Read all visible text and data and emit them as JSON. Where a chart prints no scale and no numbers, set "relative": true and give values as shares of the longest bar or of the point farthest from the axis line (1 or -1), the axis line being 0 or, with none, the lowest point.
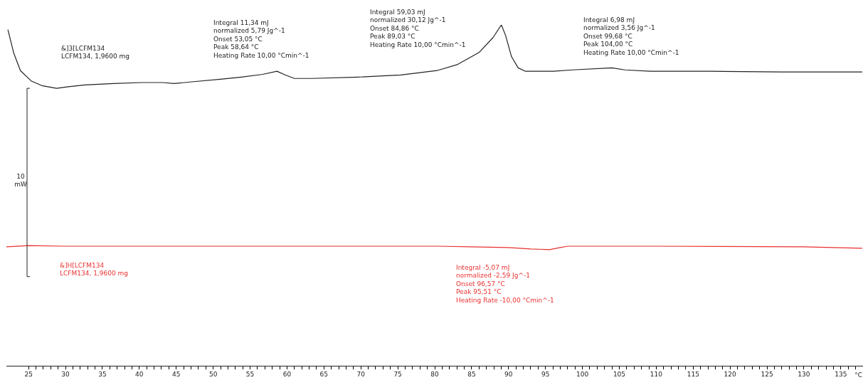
{
  "chart_data": {
    "type": "line",
    "relative": true,
    "xlabel": "°C",
    "xlim": [
      22,
      138
    ],
    "xticks": [
      25,
      {
        "value": 26,
        "label": null
      },
      {
        "value": 27,
        "label": null
      },
      {
        "value": 28,
        "label": null
      },
      {
        "value": 29,
        "label": null
      },
      30,
      {
        "value": 31,
        "label": null
      },
      {
        "value": 32,
        "label": null
      },
      {
        "value": 33,
        "label": null
      },
      {
        "value": 34,
        "label": null
      },
      35,
      {
        "value": 36,
        "label": null
      },
      {
        "value": 37,
        "label": null
      },
      {
        "value": 38,
        "label": null
      },
      {
        "value": 39,
        "label": null
      },
      40,
      {
        "value": 41,
        "label": null
      },
      {
        "value": 42,
        "label": null
      },
      {
        "value": 43,
        "label": null
      },
      {
        "value": 44,
        "label": null
      },
      45,
      {
        "value": 46,
        "label": null
      },
      {
        "value": 47,
        "label": null
      },
      {
        "value": 48,
        "label": null
      },
      {
        "value": 49,
        "label": null
      },
      50,
      {
        "value": 51,
        "label": null
      },
      {
        "value": 52,
        "label": null
      },
      {
        "value": 53,
        "label": null
      },
      {
        "value": 54,
        "label": null
      },
      55,
      {
        "value": 56,
        "label": null
      },
      {
        "value": 57,
        "label": null
      },
      {
        "value": 58,
        "label": null
      },
      {
        "value": 59,
        "label": null
      },
      60,
      {
        "value": 61,
        "label": null
      },
      {
        "value": 62,
        "label": null
      },
      {
        "value": 63,
        "label": null
      },
      {
        "value": 64,
        "label": null
      },
      65,
      {
        "value": 66,
        "label": null
      },
      {
        "value": 67,
        "label": null
      },
      {
        "value": 68,
        "label": null
      },
      {
        "value": 69,
        "label": null
      },
      70,
      {
        "value": 71,
        "label": null
      },
      {
        "value": 72,
        "label": null
      },
      {
        "value": 73,
        "label": null
      },
      {
        "value": 74,
        "label": null
      },
      75,
      {
        "value": 76,
        "label": null
      },
      {
        "value": 77,
        "label": null
      },
      {
        "value": 78,
        "label": null
      },
      {
        "value": 79,
        "label": null
      },
      80,
      {
        "value": 81,
        "label": null
      },
      {
        "value": 82,
        "label": null
      },
      {
        "value": 83,
        "label": null
      },
      {
        "value": 84,
        "label": null
      },
      85,
      {
        "value": 86,
        "label": null
      },
      {
        "value": 87,
        "label": null
      },
      {
        "value": 88,
        "label": null
      },
      {
        "value": 89,
        "label": null
      },
      90,
      {
        "value": 91,
        "label": null
      },
      {
        "value": 92,
        "label": null
      },
      {
        "value": 93,
        "label": null
      },
      {
        "value": 94,
        "label": null
      },
      95,
      {
        "value": 96,
        "label": null
      },
      {
        "value": 97,
        "label": null
      },
      {
        "value": 98,
        "label": null
      },
      {
        "value": 99,
        "label": null
      },
      100,
      {
        "value": 101,
        "label": null
      },
      {
        "value": 102,
        "label": null
      },
      {
        "value": 103,
        "label": null
      },
      {
        "value": 104,
        "label": null
      },
      105,
      {
        "value": 106,
        "label": null
      },
      {
        "value": 107,
        "label": null
      },
      {
        "value": 108,
        "label": null
      },
      {
        "value": 109,
        "label": null
      },
      110,
      {
        "value": 111,
        "label": null
      },
      {
        "value": 112,
        "label": null
      },
      {
        "value": 113,
        "label": null
      },
      {
        "value": 114,
        "label": null
      },
      115,
      {
        "value": 116,
        "label": null
      },
      {
        "value": 117,
        "label": null
      },
      {
        "value": 118,
        "label": null
      },
      {
        "value": 119,
        "label": null
      },
      120,
      {
        "value": 121,
        "label": null
      },
      {
        "value": 122,
        "label": null
      },
      {
        "value": 123,
        "label": null
      },
      {
        "value": 124,
        "label": null
      },
      125,
      {
        "value": 126,
        "label": null
      },
      {
        "value": 127,
        "label": null
      },
      {
        "value": 128,
        "label": null
      },
      {
        "value": 129,
        "label": null
      },
      130,
      {
        "value": 131,
        "label": null
      },
      {
        "value": 132,
        "label": null
      },
      {
        "value": 133,
        "label": null
      },
      {
        "value": 134,
        "label": null
      },
      135,
      {
        "value": 136,
        "label": null
      },
      {
        "value": 137,
        "label": null
      }
    ],
    "series": [
      {
        "name": "&]3[LCFM134\nLCFM134, 1,9600 mg",
        "color": "#222222",
        "x": [
          22.2,
          23.0,
          23.9,
          25.4,
          26.8,
          28.8,
          30.2,
          32.6,
          36.5,
          40.3,
          43.2,
          44.7,
          47.1,
          51.2,
          53.8,
          56.7,
          58.64,
          59.8,
          61.0,
          63.3,
          69.6,
          75.4,
          80.3,
          83.1,
          86.0,
          87.9,
          89.03,
          89.6,
          90.4,
          91.3,
          92.3,
          96.1,
          98.6,
          104.0,
          105.8,
          109.2,
          117.4,
          127.0,
          137.9
        ],
        "values": [
          0.986,
          0.917,
          0.866,
          0.835,
          0.822,
          0.814,
          0.818,
          0.824,
          0.828,
          0.831,
          0.831,
          0.828,
          0.833,
          0.841,
          0.847,
          0.855,
          0.864,
          0.853,
          0.843,
          0.843,
          0.847,
          0.853,
          0.866,
          0.884,
          0.919,
          0.963,
          1,
          0.969,
          0.907,
          0.874,
          0.864,
          0.864,
          0.868,
          0.874,
          0.868,
          0.864,
          0.864,
          0.862,
          0.862
        ]
      },
      {
        "name": "&]H[LCFM134\nLCFM134, 1,9600 mg",
        "color": "#e8312f",
        "x": [
          22.0,
          25.0,
          30.0,
          50.0,
          80.5,
          85.0,
          90.0,
          93.0,
          95.51,
          97.0,
          98.0,
          110.0,
          130.0,
          137.9
        ],
        "values": [
          0.349,
          0.353,
          0.351,
          0.351,
          0.351,
          0.349,
          0.347,
          0.343,
          0.341,
          0.347,
          0.351,
          0.351,
          0.349,
          0.345
        ]
      }
    ],
    "annotations": [
      "10\nmW",
      "Integral 11,34 mJ\nnormalized 5,79 Jg^-1\nOnset 53,05 °C\nPeak 58,64 °C\nHeating Rate 10,00 °Cmin^-1",
      "Integral 59,03 mJ\nnormalized 30,12 Jg^-1\nOnset 84,86 °C\nPeak 89,03 °C\nHeating Rate 10,00 °Cmin^-1",
      "Integral 6,98 mJ\nnormalized 3,56 Jg^-1\nOnset 99,68 °C\nPeak 104,00 °C\nHeating Rate 10,00 °Cmin^-1",
      "Integral -5,07 mJ\nnormalized -2,59 Jg^-1\nOnset 96,57 °C\nPeak 95,51 °C\nHeating Rate -10,00 °Cmin^-1"
    ],
    "grid": false,
    "legend": false,
    "marker": "none",
    "line_style": "solid"
  }
}
